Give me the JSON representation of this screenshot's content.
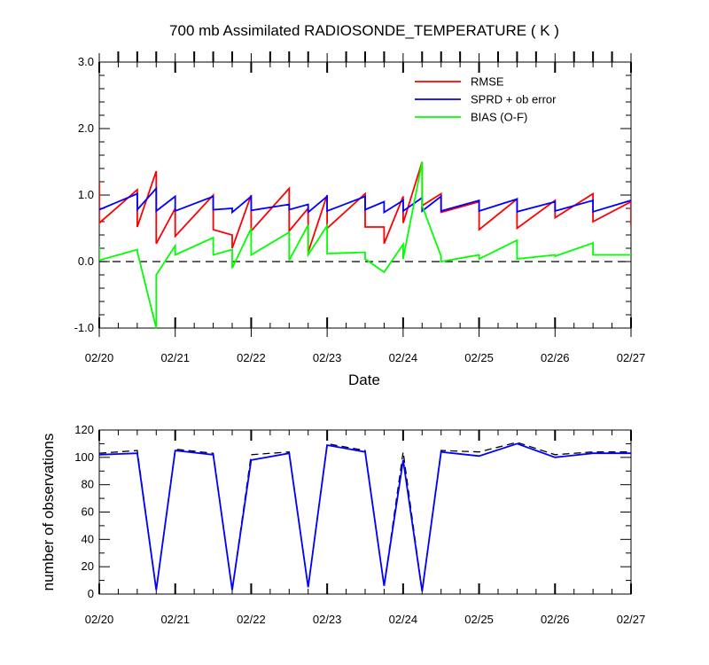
{
  "page": {
    "title": "700 mb Assimilated RADIOSONDE_TEMPERATURE ( K )",
    "xlabel": "Date"
  },
  "chart_data": [
    {
      "type": "line",
      "title": "700 mb Assimilated RADIOSONDE_TEMPERATURE ( K )",
      "xlabel": "Date",
      "ylabel": "",
      "x_unit": "days after 02/20 00Z",
      "xlim": [
        "02/20",
        "02/27"
      ],
      "ylim": [
        -1.0,
        3.0
      ],
      "xtick_labels": [
        "02/20",
        "02/21",
        "02/22",
        "02/23",
        "02/24",
        "02/25",
        "02/26",
        "02/27"
      ],
      "ytick_labels": [
        "-1.0",
        "0.0",
        "1.0",
        "2.0",
        "3.0"
      ],
      "ytick_values": [
        -1,
        0,
        1,
        2,
        3
      ],
      "legend": {
        "placement": "top-right",
        "entries": [
          "RMSE",
          "SPRD + ob error",
          "BIAS (O-F)"
        ]
      },
      "reference_line": {
        "y": 0,
        "style": "dashed"
      },
      "series": [
        {
          "name": "RMSE",
          "color": "#ff0000",
          "points": [
            [
              0.0,
              1.2
            ],
            [
              0.0,
              0.58
            ],
            [
              0.5,
              1.08
            ],
            [
              0.5,
              0.52
            ],
            [
              0.75,
              1.36
            ],
            [
              0.75,
              0.27
            ],
            [
              1.0,
              0.8
            ],
            [
              1.0,
              0.38
            ],
            [
              1.5,
              1.0
            ],
            [
              1.5,
              0.48
            ],
            [
              1.75,
              0.4
            ],
            [
              1.75,
              0.2
            ],
            [
              2.0,
              1.0
            ],
            [
              2.0,
              0.46
            ],
            [
              2.5,
              1.1
            ],
            [
              2.5,
              0.46
            ],
            [
              2.75,
              0.8
            ],
            [
              2.75,
              0.14
            ],
            [
              3.0,
              1.0
            ],
            [
              3.0,
              0.5
            ],
            [
              3.5,
              1.02
            ],
            [
              3.5,
              0.52
            ],
            [
              3.75,
              0.52
            ],
            [
              3.75,
              0.27
            ],
            [
              4.0,
              0.98
            ],
            [
              4.0,
              0.58
            ],
            [
              4.25,
              1.5
            ],
            [
              4.25,
              0.84
            ],
            [
              4.5,
              1.02
            ],
            [
              4.5,
              0.74
            ],
            [
              5.0,
              0.9
            ],
            [
              5.0,
              0.48
            ],
            [
              5.5,
              0.94
            ],
            [
              5.5,
              0.5
            ],
            [
              6.0,
              0.92
            ],
            [
              6.0,
              0.66
            ],
            [
              6.5,
              1.02
            ],
            [
              6.5,
              0.6
            ],
            [
              7.0,
              0.9
            ],
            [
              7.0,
              0.55
            ]
          ]
        },
        {
          "name": "SPRD + ob error",
          "color": "#0000ff",
          "points": [
            [
              0.0,
              0.78
            ],
            [
              0.5,
              1.02
            ],
            [
              0.5,
              0.78
            ],
            [
              0.75,
              1.1
            ],
            [
              0.75,
              0.76
            ],
            [
              1.0,
              0.98
            ],
            [
              1.0,
              0.76
            ],
            [
              1.5,
              0.98
            ],
            [
              1.5,
              0.78
            ],
            [
              1.75,
              0.8
            ],
            [
              1.75,
              0.74
            ],
            [
              2.0,
              0.98
            ],
            [
              2.0,
              0.77
            ],
            [
              2.5,
              0.86
            ],
            [
              2.5,
              0.78
            ],
            [
              2.75,
              0.86
            ],
            [
              2.75,
              0.74
            ],
            [
              3.0,
              0.98
            ],
            [
              3.0,
              0.76
            ],
            [
              3.5,
              0.98
            ],
            [
              3.5,
              0.78
            ],
            [
              3.75,
              0.9
            ],
            [
              3.75,
              0.74
            ],
            [
              4.0,
              0.92
            ],
            [
              4.0,
              0.76
            ],
            [
              4.25,
              0.96
            ],
            [
              4.25,
              0.76
            ],
            [
              4.5,
              0.98
            ],
            [
              4.5,
              0.76
            ],
            [
              5.0,
              0.92
            ],
            [
              5.0,
              0.76
            ],
            [
              5.5,
              0.94
            ],
            [
              5.5,
              0.75
            ],
            [
              6.0,
              0.9
            ],
            [
              6.0,
              0.76
            ],
            [
              6.5,
              0.92
            ],
            [
              6.5,
              0.75
            ],
            [
              7.0,
              0.92
            ]
          ]
        },
        {
          "name": "BIAS (O-F)",
          "color": "#00ff00",
          "points": [
            [
              0.0,
              0.22
            ],
            [
              0.0,
              0.02
            ],
            [
              0.5,
              0.18
            ],
            [
              0.5,
              0.15
            ],
            [
              0.75,
              -1.0
            ],
            [
              0.75,
              -0.2
            ],
            [
              1.0,
              0.24
            ],
            [
              1.0,
              0.1
            ],
            [
              1.5,
              0.36
            ],
            [
              1.5,
              0.1
            ],
            [
              1.75,
              0.18
            ],
            [
              1.75,
              -0.1
            ],
            [
              2.0,
              0.5
            ],
            [
              2.0,
              0.1
            ],
            [
              2.5,
              0.44
            ],
            [
              2.5,
              0.02
            ],
            [
              2.75,
              0.55
            ],
            [
              2.75,
              0.1
            ],
            [
              3.0,
              0.54
            ],
            [
              3.0,
              0.12
            ],
            [
              3.5,
              0.14
            ],
            [
              3.5,
              0.04
            ],
            [
              3.75,
              -0.16
            ],
            [
              4.0,
              0.26
            ],
            [
              4.0,
              0.04
            ],
            [
              4.25,
              1.5
            ],
            [
              4.25,
              0.84
            ],
            [
              4.5,
              0.08
            ],
            [
              4.5,
              0.0
            ],
            [
              5.0,
              0.1
            ],
            [
              5.0,
              0.04
            ],
            [
              5.5,
              0.32
            ],
            [
              5.5,
              0.04
            ],
            [
              6.0,
              0.1
            ],
            [
              6.0,
              0.08
            ],
            [
              6.5,
              0.28
            ],
            [
              6.5,
              0.1
            ],
            [
              7.0,
              0.1
            ]
          ]
        }
      ]
    },
    {
      "type": "line",
      "title": "",
      "xlabel": "",
      "ylabel": "number of observations",
      "x_unit": "days after 02/20 00Z",
      "xlim": [
        "02/20",
        "02/27"
      ],
      "ylim": [
        0,
        120
      ],
      "xtick_labels": [
        "02/20",
        "02/21",
        "02/22",
        "02/23",
        "02/24",
        "02/25",
        "02/26",
        "02/27"
      ],
      "ytick_labels": [
        "0",
        "20",
        "40",
        "60",
        "80",
        "100",
        "120"
      ],
      "ytick_values": [
        0,
        20,
        40,
        60,
        80,
        100,
        120
      ],
      "series": [
        {
          "name": "",
          "color": "#000000",
          "dashed": true,
          "points": [
            [
              0.0,
              103
            ],
            [
              0.5,
              105
            ],
            [
              0.75,
              3
            ],
            [
              1.0,
              106
            ],
            [
              1.5,
              103
            ],
            [
              1.75,
              3
            ],
            [
              2.0,
              102
            ],
            [
              2.5,
              104
            ],
            [
              2.75,
              5
            ],
            [
              3.0,
              110
            ],
            [
              3.5,
              105
            ],
            [
              3.75,
              6
            ],
            [
              4.0,
              104
            ],
            [
              4.25,
              2
            ],
            [
              4.5,
              105
            ],
            [
              5.0,
              104
            ],
            [
              5.5,
              111
            ],
            [
              6.0,
              102
            ],
            [
              6.5,
              104
            ],
            [
              7.0,
              104
            ]
          ]
        },
        {
          "name": "",
          "color": "#0000ff",
          "dashed": false,
          "points": [
            [
              0.0,
              102
            ],
            [
              0.5,
              103
            ],
            [
              0.75,
              3
            ],
            [
              1.0,
              105
            ],
            [
              1.5,
              102
            ],
            [
              1.75,
              3
            ],
            [
              2.0,
              98
            ],
            [
              2.5,
              103
            ],
            [
              2.75,
              5
            ],
            [
              3.0,
              109
            ],
            [
              3.5,
              104
            ],
            [
              3.75,
              6
            ],
            [
              4.0,
              98
            ],
            [
              4.25,
              2
            ],
            [
              4.5,
              104
            ],
            [
              5.0,
              101
            ],
            [
              5.5,
              110
            ],
            [
              6.0,
              100
            ],
            [
              6.5,
              103
            ],
            [
              7.0,
              103
            ]
          ]
        }
      ]
    }
  ]
}
